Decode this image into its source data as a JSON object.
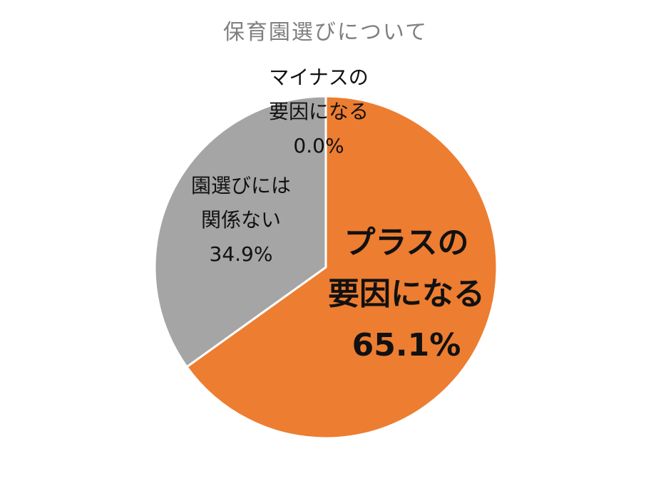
{
  "chart_data": {
    "type": "pie",
    "title": "保育園選びについて",
    "slices": [
      {
        "name": "プラスの要因になる",
        "label_lines": [
          "プラスの",
          "要因になる"
        ],
        "percent_label": "65.1%",
        "value": 65.1,
        "color": "#ED7D31"
      },
      {
        "name": "マイナスの要因になる",
        "label_lines": [
          "マイナスの",
          "要因になる"
        ],
        "percent_label": "0.0%",
        "value": 0.0,
        "color": "#FFC000"
      },
      {
        "name": "園選びには関係ない",
        "label_lines": [
          "園選びには",
          "関係ない"
        ],
        "percent_label": "34.9%",
        "value": 34.9,
        "color": "#A5A5A5"
      }
    ]
  }
}
